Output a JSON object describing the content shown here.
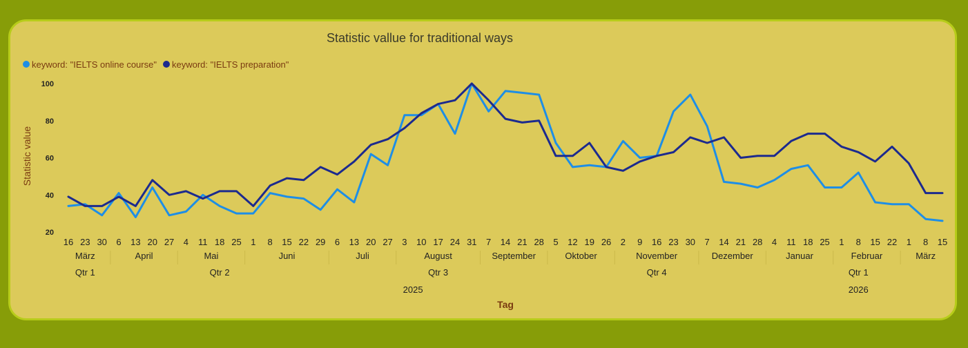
{
  "chart_data": {
    "type": "line",
    "title": "Statistic vallue for traditional ways",
    "xlabel": "Tag",
    "ylabel": "Statistic value",
    "ylim": [
      20,
      100
    ],
    "yticks": [
      20,
      40,
      60,
      80,
      100
    ],
    "x": [
      "16",
      "23",
      "30",
      "6",
      "13",
      "20",
      "27",
      "4",
      "11",
      "18",
      "25",
      "1",
      "8",
      "15",
      "22",
      "29",
      "6",
      "13",
      "20",
      "27",
      "3",
      "10",
      "17",
      "24",
      "31",
      "7",
      "14",
      "21",
      "28",
      "5",
      "12",
      "19",
      "26",
      "2",
      "9",
      "16",
      "23",
      "30",
      "7",
      "14",
      "21",
      "28",
      "4",
      "11",
      "18",
      "25",
      "1",
      "8",
      "15",
      "22",
      "1",
      "8",
      "15"
    ],
    "months": [
      {
        "label": "März",
        "start": 0,
        "end": 2
      },
      {
        "label": "April",
        "start": 3,
        "end": 6
      },
      {
        "label": "Mai",
        "start": 7,
        "end": 10
      },
      {
        "label": "Juni",
        "start": 11,
        "end": 15
      },
      {
        "label": "Juli",
        "start": 16,
        "end": 19
      },
      {
        "label": "August",
        "start": 20,
        "end": 24
      },
      {
        "label": "September",
        "start": 25,
        "end": 28
      },
      {
        "label": "Oktober",
        "start": 29,
        "end": 32
      },
      {
        "label": "November",
        "start": 33,
        "end": 37
      },
      {
        "label": "Dezember",
        "start": 38,
        "end": 41
      },
      {
        "label": "Januar",
        "start": 42,
        "end": 45
      },
      {
        "label": "Februar",
        "start": 46,
        "end": 49
      },
      {
        "label": "März",
        "start": 50,
        "end": 52
      }
    ],
    "quarters": [
      {
        "label": "Qtr 1",
        "start": 0,
        "end": 2
      },
      {
        "label": "Qtr 2",
        "start": 3,
        "end": 15
      },
      {
        "label": "Qtr 3",
        "start": 16,
        "end": 28
      },
      {
        "label": "Qtr 4",
        "start": 29,
        "end": 41
      },
      {
        "label": "Qtr 1",
        "start": 42,
        "end": 52
      }
    ],
    "years": [
      {
        "label": "2025",
        "start": 0,
        "end": 41
      },
      {
        "label": "2026",
        "start": 42,
        "end": 52
      }
    ],
    "series": [
      {
        "name": "keyword: \"IELTS online course\"",
        "color": "#1e8ee6",
        "values": [
          34,
          35,
          29,
          41,
          28,
          44,
          29,
          31,
          40,
          34,
          30,
          30,
          41,
          39,
          38,
          32,
          43,
          36,
          62,
          56,
          83,
          83,
          89,
          73,
          100,
          85,
          96,
          95,
          94,
          68,
          55,
          56,
          55,
          69,
          60,
          61,
          85,
          94,
          77,
          47,
          46,
          44,
          48,
          54,
          56,
          44,
          44,
          52,
          36,
          35,
          35,
          27,
          26
        ]
      },
      {
        "name": "keyword: \"IELTS preparation\"",
        "color": "#1c2a8e",
        "values": [
          39,
          34,
          34,
          39,
          34,
          48,
          40,
          42,
          38,
          42,
          42,
          34,
          45,
          49,
          48,
          55,
          51,
          58,
          67,
          70,
          76,
          84,
          89,
          91,
          100,
          91,
          81,
          79,
          80,
          61,
          61,
          68,
          55,
          53,
          58,
          61,
          63,
          71,
          68,
          71,
          60,
          61,
          61,
          69,
          73,
          73,
          66,
          63,
          58,
          66,
          57,
          41,
          41
        ]
      }
    ]
  }
}
